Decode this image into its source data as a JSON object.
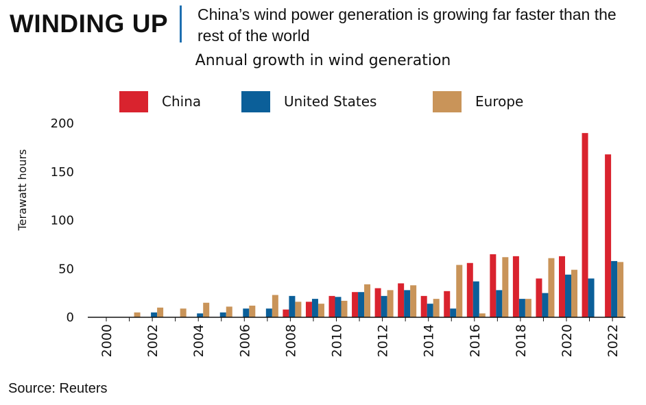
{
  "header": {
    "headline": "WINDING UP",
    "subtitle": "China’s wind power generation is growing far faster than the rest of the world",
    "source": "Source: Reuters"
  },
  "colors": {
    "china": "#d9232e",
    "united_states": "#0b5f99",
    "europe": "#c99459",
    "divider": "#1e6fb0"
  },
  "chart_data": {
    "type": "bar",
    "title": "Annual growth in wind generation",
    "xlabel": "",
    "ylabel": "Terawatt hours",
    "ylim": [
      0,
      200
    ],
    "yticks": [
      0,
      50,
      100,
      150,
      200
    ],
    "legend_position": "top",
    "grid": false,
    "categories": [
      "2000",
      "2001",
      "2002",
      "2003",
      "2004",
      "2005",
      "2006",
      "2007",
      "2008",
      "2009",
      "2010",
      "2011",
      "2012",
      "2013",
      "2014",
      "2015",
      "2016",
      "2017",
      "2018",
      "2019",
      "2020",
      "2021",
      "2022"
    ],
    "xtick_labels": [
      "2000",
      "2002",
      "2004",
      "2006",
      "2008",
      "2010",
      "2012",
      "2014",
      "2016",
      "2018",
      "2020",
      "2022"
    ],
    "series": [
      {
        "name": "China",
        "color": "#d9232e",
        "values": [
          0,
          0,
          0,
          0,
          0,
          0,
          0,
          0,
          8,
          16,
          22,
          26,
          30,
          35,
          22,
          27,
          56,
          65,
          63,
          40,
          63,
          190,
          168
        ]
      },
      {
        "name": "United States",
        "color": "#0b5f99",
        "values": [
          0,
          0,
          5,
          0,
          4,
          5,
          9,
          9,
          22,
          19,
          21,
          26,
          22,
          28,
          14,
          9,
          37,
          28,
          19,
          25,
          44,
          40,
          58
        ]
      },
      {
        "name": "Europe",
        "color": "#c99459",
        "values": [
          0,
          5,
          10,
          9,
          15,
          11,
          12,
          23,
          16,
          14,
          17,
          34,
          28,
          33,
          19,
          54,
          4,
          62,
          19,
          61,
          49,
          0,
          57
        ]
      }
    ]
  }
}
